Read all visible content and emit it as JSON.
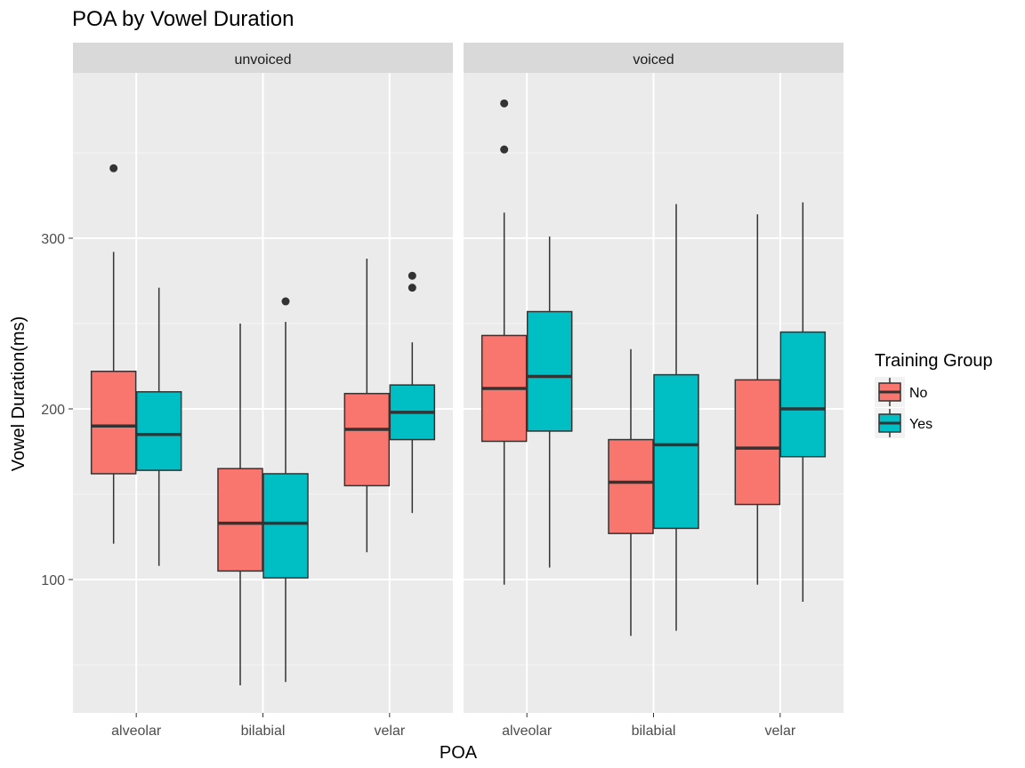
{
  "chart_data": {
    "type": "box",
    "title": "POA by Vowel Duration",
    "xlabel": "POA",
    "ylabel": "Vowel Duration(ms)",
    "ylim": [
      25,
      390
    ],
    "yticks": [
      100,
      200,
      300
    ],
    "categories": [
      "alveolar",
      "bilabial",
      "velar"
    ],
    "legend": {
      "title": "Training Group",
      "position": "right",
      "entries": [
        {
          "name": "No",
          "color": "#F8766D"
        },
        {
          "name": "Yes",
          "color": "#00BFC4"
        }
      ]
    },
    "facets": [
      {
        "label": "unvoiced",
        "boxes": [
          {
            "category": "alveolar",
            "group": "No",
            "min": 121,
            "q1": 162,
            "median": 190,
            "q3": 222,
            "max": 292,
            "outliers": [
              341
            ]
          },
          {
            "category": "alveolar",
            "group": "Yes",
            "min": 108,
            "q1": 164,
            "median": 185,
            "q3": 210,
            "max": 271,
            "outliers": []
          },
          {
            "category": "bilabial",
            "group": "No",
            "min": 38,
            "q1": 105,
            "median": 133,
            "q3": 165,
            "max": 250,
            "outliers": []
          },
          {
            "category": "bilabial",
            "group": "Yes",
            "min": 40,
            "q1": 101,
            "median": 133,
            "q3": 162,
            "max": 251,
            "outliers": [
              263
            ]
          },
          {
            "category": "velar",
            "group": "No",
            "min": 116,
            "q1": 155,
            "median": 188,
            "q3": 209,
            "max": 288,
            "outliers": []
          },
          {
            "category": "velar",
            "group": "Yes",
            "min": 139,
            "q1": 182,
            "median": 198,
            "q3": 214,
            "max": 239,
            "outliers": [
              271,
              278
            ]
          }
        ]
      },
      {
        "label": "voiced",
        "boxes": [
          {
            "category": "alveolar",
            "group": "No",
            "min": 97,
            "q1": 181,
            "median": 212,
            "q3": 243,
            "max": 315,
            "outliers": [
              352,
              379
            ]
          },
          {
            "category": "alveolar",
            "group": "Yes",
            "min": 107,
            "q1": 187,
            "median": 219,
            "q3": 257,
            "max": 301,
            "outliers": []
          },
          {
            "category": "bilabial",
            "group": "No",
            "min": 67,
            "q1": 127,
            "median": 157,
            "q3": 182,
            "max": 235,
            "outliers": []
          },
          {
            "category": "bilabial",
            "group": "Yes",
            "min": 70,
            "q1": 130,
            "median": 179,
            "q3": 220,
            "max": 320,
            "outliers": []
          },
          {
            "category": "velar",
            "group": "No",
            "min": 97,
            "q1": 144,
            "median": 177,
            "q3": 217,
            "max": 314,
            "outliers": []
          },
          {
            "category": "velar",
            "group": "Yes",
            "min": 87,
            "q1": 172,
            "median": 200,
            "q3": 245,
            "max": 321,
            "outliers": []
          }
        ]
      }
    ]
  }
}
